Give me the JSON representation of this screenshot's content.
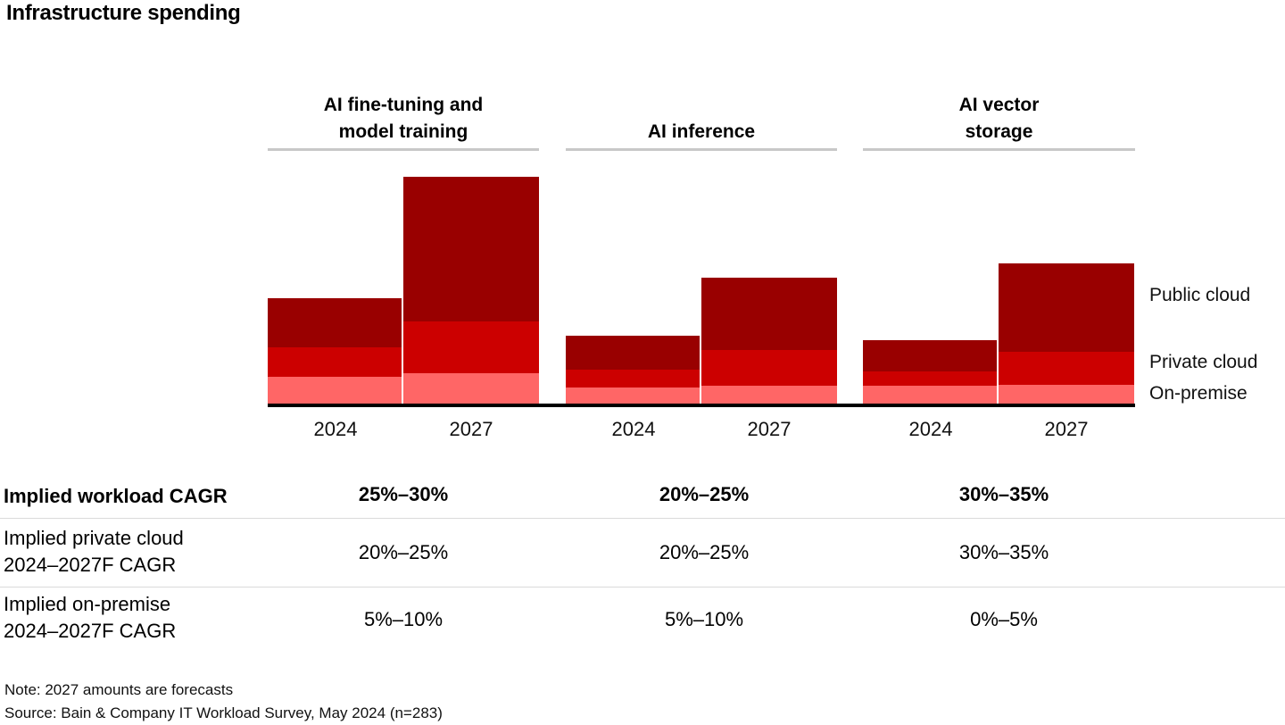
{
  "title": "Infrastructure spending",
  "colors": {
    "public_cloud": "#990000",
    "private_cloud": "#cc0000",
    "on_premise": "#ff6666",
    "header_rule": "#c8c8c8",
    "table_divider": "#dadada",
    "axis": "#000000"
  },
  "legend": {
    "public_cloud": "Public cloud",
    "private_cloud": "Private cloud",
    "on_premise": "On-premise"
  },
  "chart_data": {
    "type": "bar",
    "stacked": true,
    "title": "Infrastructure spending",
    "xlabel": "",
    "ylabel": "",
    "value_units": "relative height in px; no numeric y-axis shown in figure",
    "stack_order_bottom_to_top": [
      "On-premise",
      "Private cloud",
      "Public cloud"
    ],
    "legend_position": "right",
    "grid": false,
    "groups": [
      {
        "header_lines": [
          "AI fine-tuning and",
          "model training"
        ],
        "bars": [
          {
            "year": "2024",
            "on_premise": 30,
            "private_cloud": 33,
            "public_cloud": 55
          },
          {
            "year": "2027",
            "on_premise": 34,
            "private_cloud": 58,
            "public_cloud": 162
          }
        ]
      },
      {
        "header_lines": [
          "AI inference"
        ],
        "bars": [
          {
            "year": "2024",
            "on_premise": 18,
            "private_cloud": 20,
            "public_cloud": 38
          },
          {
            "year": "2027",
            "on_premise": 20,
            "private_cloud": 40,
            "public_cloud": 81
          }
        ]
      },
      {
        "header_lines": [
          "AI vector",
          "storage"
        ],
        "bars": [
          {
            "year": "2024",
            "on_premise": 20,
            "private_cloud": 16,
            "public_cloud": 35
          },
          {
            "year": "2027",
            "on_premise": 21,
            "private_cloud": 37,
            "public_cloud": 99
          }
        ]
      }
    ]
  },
  "table": {
    "rows": [
      {
        "label_lines": [
          "Implied workload CAGR"
        ],
        "values": [
          "25%–30%",
          "20%–25%",
          "30%–35%"
        ]
      },
      {
        "label_lines": [
          "Implied private cloud",
          "2024–2027F CAGR"
        ],
        "values": [
          "20%–25%",
          "20%–25%",
          "30%–35%"
        ]
      },
      {
        "label_lines": [
          "Implied on-premise",
          "2024–2027F CAGR"
        ],
        "values": [
          "5%–10%",
          "5%–10%",
          "0%–5%"
        ]
      }
    ]
  },
  "footnotes": [
    "Note: 2027 amounts are forecasts",
    "Source: Bain & Company IT Workload Survey, May 2024 (n=283)"
  ]
}
